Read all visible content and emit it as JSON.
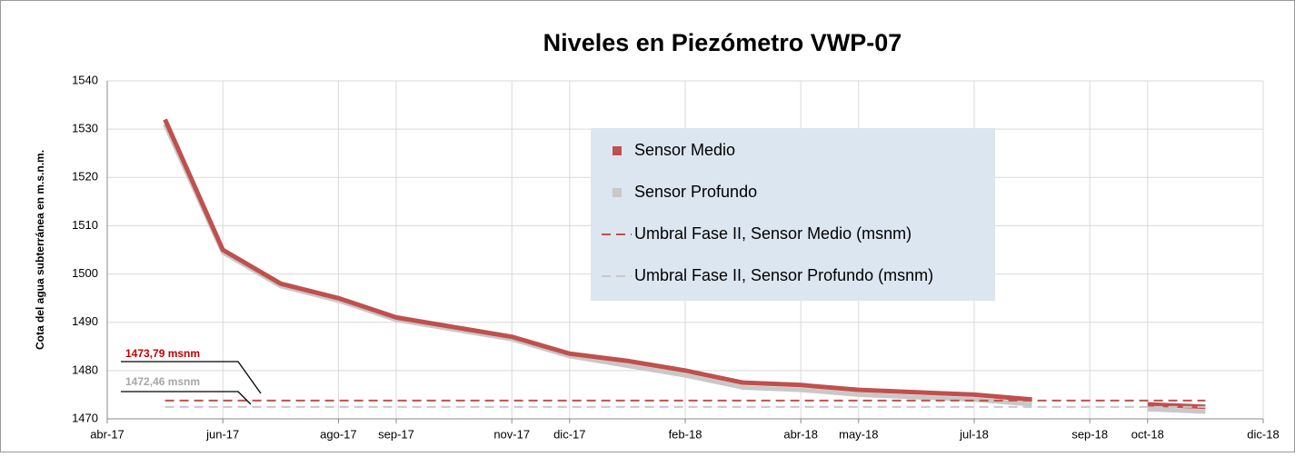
{
  "chart_data": {
    "type": "line",
    "title": "Niveles en Piezómetro VWP-07",
    "y_label": "Cota del agua subterránea en m.s.n.m.",
    "xlim": [
      "2017-04",
      "2018-12"
    ],
    "xticks": [
      {
        "value": "2017-04",
        "label": "abr-17"
      },
      {
        "value": "2017-06",
        "label": "jun-17"
      },
      {
        "value": "2017-08",
        "label": "ago-17"
      },
      {
        "value": "2017-09",
        "label": "sep-17"
      },
      {
        "value": "2017-11",
        "label": "nov-17"
      },
      {
        "value": "2017-12",
        "label": "dic-17"
      },
      {
        "value": "2018-02",
        "label": "feb-18"
      },
      {
        "value": "2018-04",
        "label": "abr-18"
      },
      {
        "value": "2018-05",
        "label": "may-18"
      },
      {
        "value": "2018-07",
        "label": "jul-18"
      },
      {
        "value": "2018-09",
        "label": "sep-18"
      },
      {
        "value": "2018-10",
        "label": "oct-18"
      },
      {
        "value": "2018-12",
        "label": "dic-18"
      }
    ],
    "ylim": [
      1470,
      1540
    ],
    "yticks": [
      1470,
      1480,
      1490,
      1500,
      1510,
      1520,
      1530,
      1540
    ],
    "grid": true,
    "series": [
      {
        "name": "Sensor Medio",
        "color": "#c0504d",
        "style": "solid",
        "x": [
          "2017-05",
          "2017-06",
          "2017-07",
          "2017-08",
          "2017-09",
          "2017-10",
          "2017-11",
          "2017-12",
          "2018-01",
          "2018-02",
          "2018-03",
          "2018-04",
          "2018-05",
          "2018-06",
          "2018-07",
          "2018-08",
          "2018-09",
          "2018-10",
          "2018-11"
        ],
        "values": [
          1532,
          1505,
          1498,
          1495,
          1491,
          1489,
          1487,
          1483.5,
          1482,
          1480,
          1477.5,
          1477,
          1476,
          1475.5,
          1475,
          1474,
          null,
          1473,
          1472.5
        ]
      },
      {
        "name": "Sensor Profundo",
        "color": "#c8c8c8",
        "style": "solid",
        "x": [
          "2017-05",
          "2017-06",
          "2017-07",
          "2017-08",
          "2017-09",
          "2017-10",
          "2017-11",
          "2017-12",
          "2018-01",
          "2018-02",
          "2018-03",
          "2018-04",
          "2018-05",
          "2018-06",
          "2018-07",
          "2018-08",
          "2018-09",
          "2018-10",
          "2018-11"
        ],
        "values": [
          1531,
          1504.5,
          1497.5,
          1494.5,
          1490.5,
          1488.5,
          1486.5,
          1483,
          1481,
          1479,
          1476.5,
          1476,
          1475,
          1474.5,
          1474,
          1473,
          null,
          1472,
          1471.5
        ]
      },
      {
        "name": "Umbral Fase II, Sensor Medio (msnm)",
        "color": "#c0504d",
        "style": "dashed",
        "x": [
          "2017-05",
          "2018-11"
        ],
        "values": [
          1473.79,
          1473.79
        ]
      },
      {
        "name": "Umbral Fase II, Sensor Profundo (msnm)",
        "color": "#c8c8c8",
        "style": "dashed",
        "x": [
          "2017-05",
          "2018-11"
        ],
        "values": [
          1472.46,
          1472.46
        ]
      }
    ],
    "annotations": [
      {
        "text": "1473,79 msnm",
        "color": "#c00000"
      },
      {
        "text": "1472,46 msnm",
        "color": "#a6a6a6"
      }
    ]
  }
}
